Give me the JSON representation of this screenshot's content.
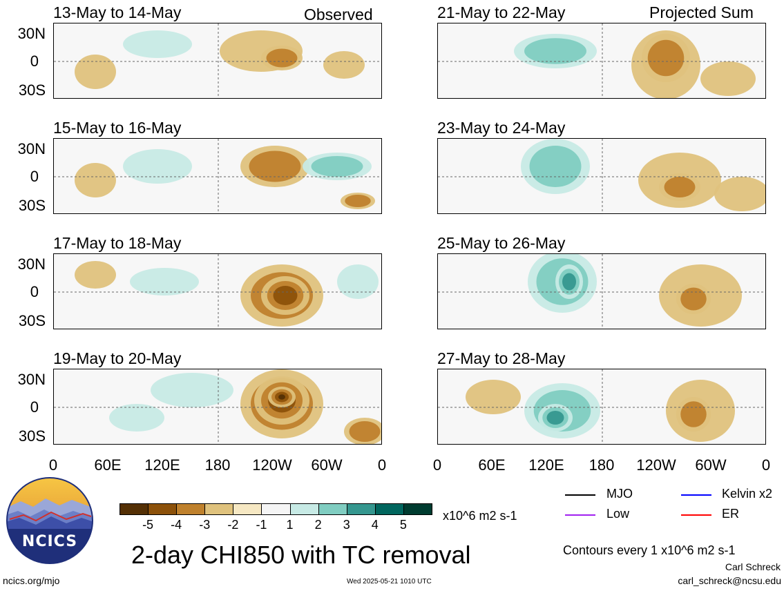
{
  "columns": {
    "left_note": "Observed",
    "right_note": "Projected Sum"
  },
  "panels": [
    {
      "title": "13-May to 14-May",
      "kind": "observed"
    },
    {
      "title": "15-May to 16-May",
      "kind": "observed"
    },
    {
      "title": "17-May to 18-May",
      "kind": "observed"
    },
    {
      "title": "19-May to 20-May",
      "kind": "observed"
    },
    {
      "title": "21-May to 22-May",
      "kind": "projected"
    },
    {
      "title": "23-May to 24-May",
      "kind": "projected"
    },
    {
      "title": "25-May to 26-May",
      "kind": "projected"
    },
    {
      "title": "27-May to 28-May",
      "kind": "projected"
    }
  ],
  "lat_labels": [
    "30N",
    "0",
    "30S"
  ],
  "lon_labels": [
    "0",
    "60E",
    "120E",
    "180",
    "120W",
    "60W",
    "0"
  ],
  "colorbar": {
    "colors": [
      "#543005",
      "#8c510a",
      "#bf812d",
      "#dfc27d",
      "#f6e8c3",
      "#f5f5f5",
      "#c7eae5",
      "#80cdc1",
      "#35978f",
      "#01665e",
      "#003c30"
    ],
    "labels": [
      "-5",
      "-4",
      "-3",
      "-2",
      "-1",
      "1",
      "2",
      "3",
      "4",
      "5"
    ],
    "units": "x10^6 m2 s-1"
  },
  "legend": [
    {
      "label": "MJO",
      "color": "#000000"
    },
    {
      "label": "Kelvin x2",
      "color": "#0000ff"
    },
    {
      "label": "Low",
      "color": "#a020f0"
    },
    {
      "label": "ER",
      "color": "#ff0000"
    }
  ],
  "logo_text": "NCICS",
  "main_title": "2-day CHI850 with TC removal",
  "contour_note": "Contours every 1 x10^6 m2 s-1",
  "author": "Carl Schreck",
  "footer": {
    "left": "ncics.org/mjo",
    "center": "Wed 2025-05-21 1010 UTC",
    "right": "carl_schreck@ncsu.edu"
  }
}
